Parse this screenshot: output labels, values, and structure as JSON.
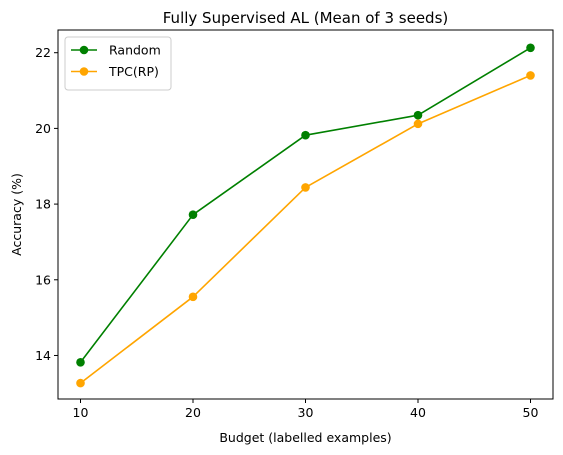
{
  "chart_data": {
    "type": "line",
    "title": "Fully Supervised AL (Mean of 3 seeds)",
    "xlabel": "Budget (labelled examples)",
    "ylabel": "Accuracy (%)",
    "x": [
      10,
      20,
      30,
      40,
      50
    ],
    "xlim": [
      8,
      52
    ],
    "ylim": [
      12.85,
      22.6
    ],
    "xticks": [
      10,
      20,
      30,
      40,
      50
    ],
    "yticks": [
      14,
      16,
      18,
      20,
      22
    ],
    "grid": false,
    "legend_position": "upper-left",
    "series": [
      {
        "name": "Random",
        "color": "#008000",
        "marker": "circle",
        "values": [
          13.82,
          17.72,
          19.82,
          20.35,
          22.13
        ]
      },
      {
        "name": "TPC(RP)",
        "color": "#FFA500",
        "marker": "circle",
        "values": [
          13.27,
          15.55,
          18.44,
          20.12,
          21.4
        ]
      }
    ]
  }
}
